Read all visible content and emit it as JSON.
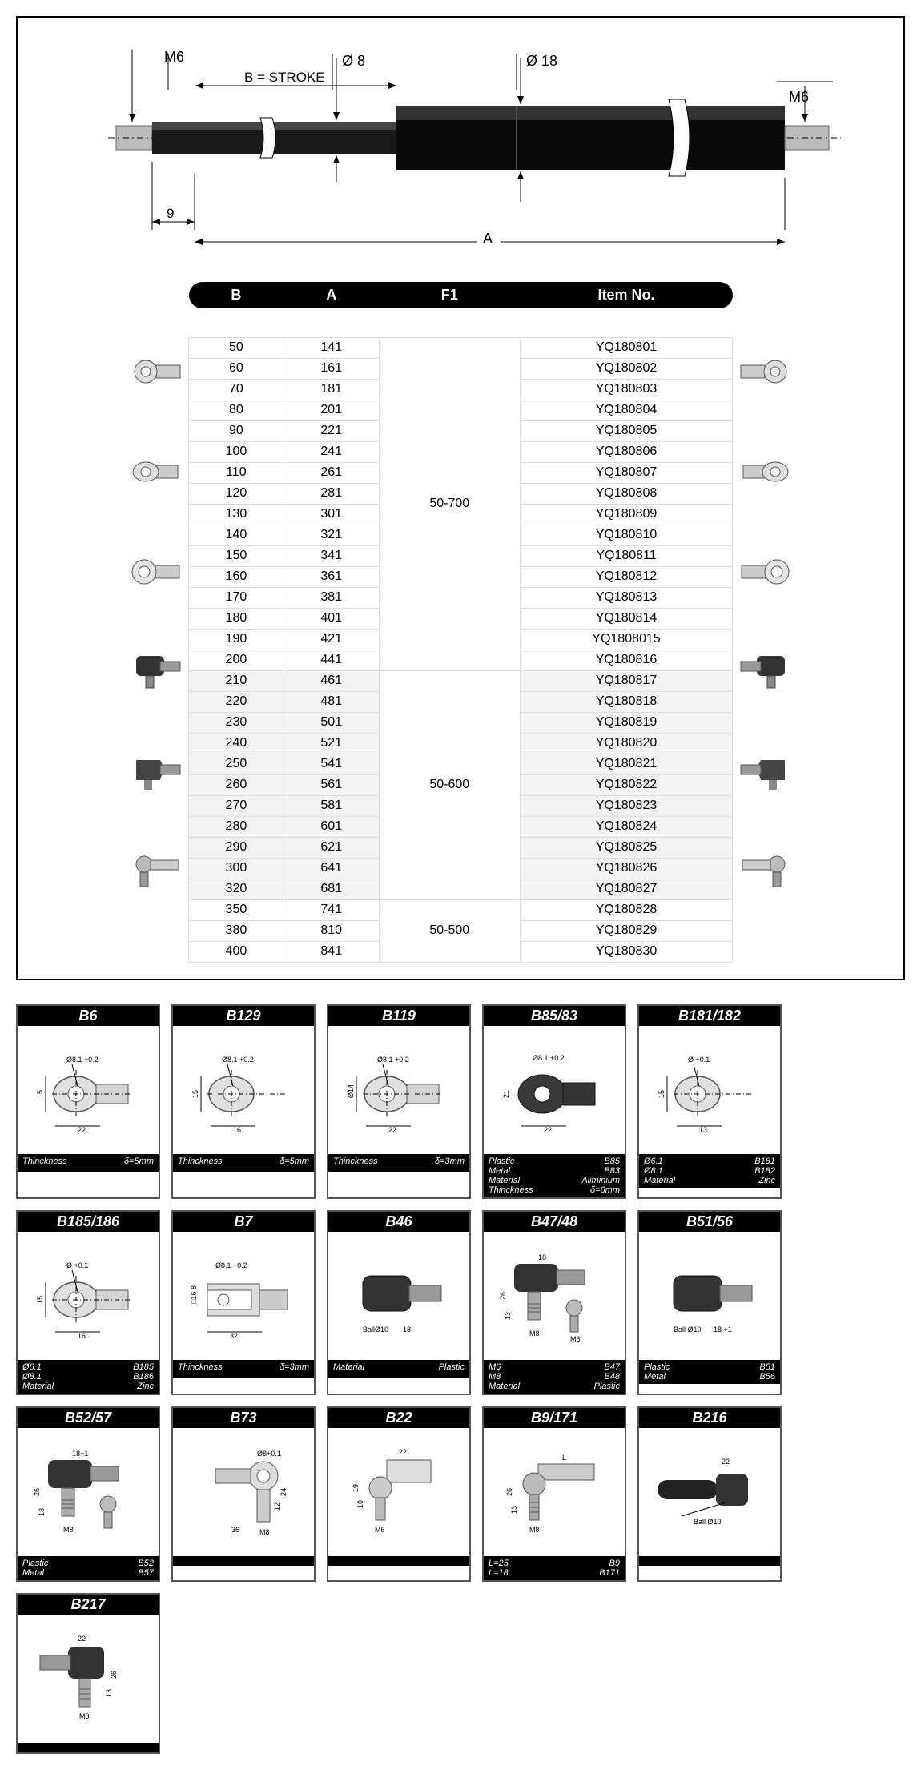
{
  "diagram": {
    "labels": {
      "m6_left": "M6",
      "m6_right": "M6",
      "d8": "Ø 8",
      "d18": "Ø 18",
      "stroke": "B = STROKE",
      "nine": "9",
      "A": "A"
    },
    "colors": {
      "body": "#000000",
      "rod": "#333333",
      "end": "#999999",
      "line": "#000000"
    }
  },
  "table": {
    "headers": [
      "B",
      "A",
      "F1",
      "Item No."
    ],
    "groups": [
      {
        "f1": "50-700",
        "alt": false,
        "rows": [
          [
            "50",
            "141",
            "YQ180801"
          ],
          [
            "60",
            "161",
            "YQ180802"
          ],
          [
            "70",
            "181",
            "YQ180803"
          ],
          [
            "80",
            "201",
            "YQ180804"
          ],
          [
            "90",
            "221",
            "YQ180805"
          ],
          [
            "100",
            "241",
            "YQ180806"
          ],
          [
            "110",
            "261",
            "YQ180807"
          ],
          [
            "120",
            "281",
            "YQ180808"
          ],
          [
            "130",
            "301",
            "YQ180809"
          ],
          [
            "140",
            "321",
            "YQ180810"
          ],
          [
            "150",
            "341",
            "YQ180811"
          ],
          [
            "160",
            "361",
            "YQ180812"
          ],
          [
            "170",
            "381",
            "YQ180813"
          ],
          [
            "180",
            "401",
            "YQ180814"
          ],
          [
            "190",
            "421",
            "YQ1808015"
          ],
          [
            "200",
            "441",
            "YQ180816"
          ]
        ]
      },
      {
        "f1": "50-600",
        "alt": true,
        "rows": [
          [
            "210",
            "461",
            "YQ180817"
          ],
          [
            "220",
            "481",
            "YQ180818"
          ],
          [
            "230",
            "501",
            "YQ180819"
          ],
          [
            "240",
            "521",
            "YQ180820"
          ],
          [
            "250",
            "541",
            "YQ180821"
          ],
          [
            "260",
            "561",
            "YQ180822"
          ],
          [
            "270",
            "581",
            "YQ180823"
          ],
          [
            "280",
            "601",
            "YQ180824"
          ],
          [
            "290",
            "621",
            "YQ180825"
          ],
          [
            "300",
            "641",
            "YQ180826"
          ],
          [
            "320",
            "681",
            "YQ180827"
          ]
        ]
      },
      {
        "f1": "50-500",
        "alt": false,
        "rows": [
          [
            "350",
            "741",
            "YQ180828"
          ],
          [
            "380",
            "810",
            "YQ180829"
          ],
          [
            "400",
            "841",
            "YQ180830"
          ]
        ]
      }
    ]
  },
  "side_fittings_count": 6,
  "cards": [
    {
      "title": "B6",
      "footer": [
        [
          "Thinckness",
          "δ=5mm"
        ]
      ],
      "dims": {
        "hole": "Ø8.1 +0.2",
        "h": "15",
        "w": "22"
      },
      "shape": "eyelet-tube"
    },
    {
      "title": "B129",
      "footer": [
        [
          "Thinckness",
          "δ=5mm"
        ]
      ],
      "dims": {
        "hole": "Ø8.1 +0.2",
        "h": "15",
        "w": "16"
      },
      "shape": "eyelet"
    },
    {
      "title": "B119",
      "footer": [
        [
          "Thinckness",
          "δ=3mm"
        ]
      ],
      "dims": {
        "hole": "Ø8.1 +0.2",
        "h": "Ø14",
        "w": "22"
      },
      "shape": "eyelet-tube"
    },
    {
      "title": "B85/83",
      "footer": [
        [
          "Plastic",
          "B85"
        ],
        [
          "Metal",
          "B83"
        ],
        [
          "Material",
          "Aliminium"
        ],
        [
          "Thinckness",
          "δ=6mm"
        ]
      ],
      "dims": {
        "hole": "Ø8.1 +0.2",
        "h": "21",
        "w": "22"
      },
      "shape": "eyelet-dark"
    },
    {
      "title": "B181/182",
      "footer": [
        [
          "Ø6.1",
          "B181"
        ],
        [
          "Ø8.1",
          "B182"
        ],
        [
          "Material",
          "Zinc"
        ]
      ],
      "dims": {
        "hole": "Ø +0.1",
        "h": "15",
        "w": "13"
      },
      "shape": "eyelet"
    },
    {
      "title": "B185/186",
      "footer": [
        [
          "Ø6.1",
          "B185"
        ],
        [
          "Ø8.1",
          "B186"
        ],
        [
          "Material",
          "Zinc"
        ]
      ],
      "dims": {
        "hole": "Ø +0.1",
        "h": "15",
        "w": "16"
      },
      "shape": "eyelet-tube"
    },
    {
      "title": "B7",
      "footer": [
        [
          "Thinckness",
          "δ=3mm"
        ]
      ],
      "dims": {
        "hole": "Ø8.1 +0.2",
        "h": "□16  8",
        "w": "32"
      },
      "shape": "clevis"
    },
    {
      "title": "B46",
      "footer": [
        [
          "Material",
          "Plastic"
        ]
      ],
      "dims": {
        "ball": "BallØ10",
        "w": "18"
      },
      "shape": "ball-socket-dark"
    },
    {
      "title": "B47/48",
      "footer": [
        [
          "M6",
          "B47"
        ],
        [
          "M8",
          "B48"
        ],
        [
          "Material",
          "Plastic"
        ]
      ],
      "dims": {
        "w": "18",
        "h": "26",
        "h2": "13",
        "m1": "M8",
        "m2": "M6"
      },
      "shape": "ball-stud"
    },
    {
      "title": "B51/56",
      "footer": [
        [
          "Plastic",
          "B51"
        ],
        [
          "Metal",
          "B56"
        ]
      ],
      "dims": {
        "ball": "Ball Ø10",
        "w": "18 +1"
      },
      "shape": "ball-socket-dark"
    },
    {
      "title": "B52/57",
      "footer": [
        [
          "Plastic",
          "B52"
        ],
        [
          "Metal",
          "B57"
        ]
      ],
      "dims": {
        "w": "18+1",
        "h": "26",
        "h2": "13",
        "m": "M8"
      },
      "shape": "ball-stud"
    },
    {
      "title": "B73",
      "footer": [],
      "dims": {
        "hole": "Ø8+0.1",
        "w": "36",
        "h": "24",
        "h2": "12",
        "m": "M8"
      },
      "shape": "rod-end"
    },
    {
      "title": "B22",
      "footer": [],
      "dims": {
        "w": "22",
        "h": "19",
        "h2": "10",
        "m": "M6"
      },
      "shape": "angle-ball"
    },
    {
      "title": "B9/171",
      "footer": [
        [
          "L=25",
          "B9"
        ],
        [
          "L=18",
          "B171"
        ]
      ],
      "dims": {
        "L": "L",
        "h": "26",
        "h2": "13",
        "m": "M8"
      },
      "shape": "ball-stud-tube"
    },
    {
      "title": "B216",
      "footer": [],
      "dims": {
        "w": "22",
        "ball": "Ball Ø10"
      },
      "shape": "ball-socket-long"
    },
    {
      "title": "B217",
      "footer": [],
      "dims": {
        "w": "22",
        "h": "26",
        "h2": "13",
        "m": "M8"
      },
      "shape": "ball-stud-long"
    }
  ]
}
